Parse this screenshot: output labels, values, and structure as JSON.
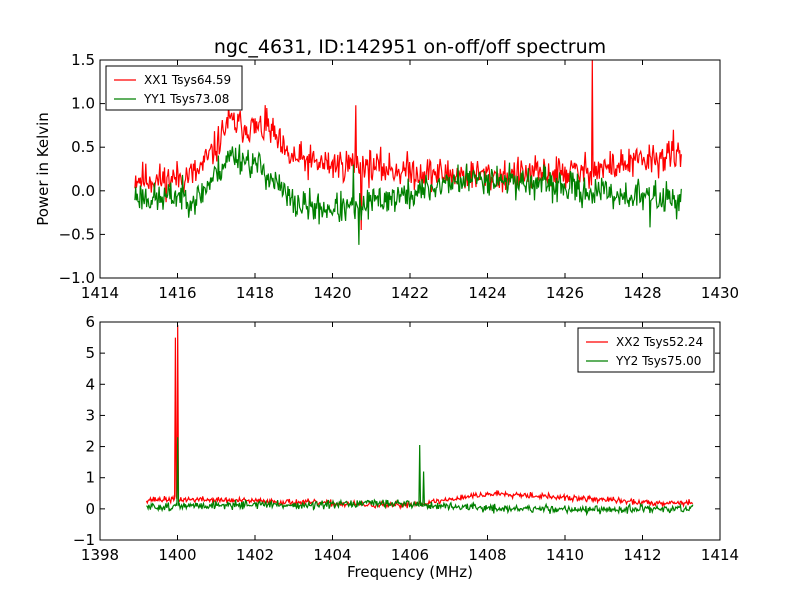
{
  "figure": {
    "title": "ngc_4631, ID:142951 on-off/off spectrum"
  },
  "chart_data": [
    {
      "type": "line",
      "title": "ngc_4631, ID:142951 on-off/off spectrum",
      "xlabel": "",
      "ylabel": "Power in Kelvin",
      "xlim": [
        1414,
        1430
      ],
      "ylim": [
        -1.0,
        1.5
      ],
      "xticks": [
        1414,
        1416,
        1418,
        1420,
        1422,
        1424,
        1426,
        1428,
        1430
      ],
      "xtick_labels": [
        "1414",
        "1416",
        "1418",
        "1420",
        "1422",
        "1424",
        "1426",
        "1428",
        "1430"
      ],
      "yticks": [
        -1.0,
        -0.5,
        0.0,
        0.5,
        1.0,
        1.5
      ],
      "ytick_labels": [
        "−1.0",
        "−0.5",
        "0.0",
        "0.5",
        "1.0",
        "1.5"
      ],
      "legend_position": "top-left",
      "grid": false,
      "series": [
        {
          "name": "XX1 Tsys64.59",
          "color": "#ff0000",
          "x_range": [
            1414.9,
            1429.0
          ],
          "noise": 0.12,
          "seed": 11,
          "profile": [
            [
              1414.9,
              0.15
            ],
            [
              1415.5,
              0.12
            ],
            [
              1416.0,
              0.15
            ],
            [
              1416.5,
              0.2
            ],
            [
              1417.0,
              0.5
            ],
            [
              1417.3,
              0.8
            ],
            [
              1417.6,
              0.75
            ],
            [
              1418.0,
              0.72
            ],
            [
              1418.4,
              0.7
            ],
            [
              1418.8,
              0.4
            ],
            [
              1419.5,
              0.32
            ],
            [
              1420.0,
              0.3
            ],
            [
              1420.5,
              0.3
            ],
            [
              1421.5,
              0.25
            ],
            [
              1422.5,
              0.2
            ],
            [
              1423.5,
              0.18
            ],
            [
              1424.5,
              0.17
            ],
            [
              1425.5,
              0.2
            ],
            [
              1426.5,
              0.22
            ],
            [
              1427.5,
              0.3
            ],
            [
              1428.5,
              0.38
            ],
            [
              1429.0,
              0.4
            ]
          ],
          "spikes": [
            {
              "x": 1420.6,
              "y": 0.98
            },
            {
              "x": 1420.75,
              "y": -0.45
            },
            {
              "x": 1426.7,
              "y": 1.5
            },
            {
              "x": 1418.3,
              "y": 0.95
            },
            {
              "x": 1428.8,
              "y": 0.7
            }
          ]
        },
        {
          "name": "YY1 Tsys73.08",
          "color": "#008000",
          "x_range": [
            1414.9,
            1429.0
          ],
          "noise": 0.11,
          "seed": 23,
          "profile": [
            [
              1414.9,
              -0.05
            ],
            [
              1415.5,
              -0.1
            ],
            [
              1416.0,
              -0.05
            ],
            [
              1416.5,
              -0.1
            ],
            [
              1417.0,
              0.2
            ],
            [
              1417.4,
              0.42
            ],
            [
              1417.8,
              0.35
            ],
            [
              1418.2,
              0.25
            ],
            [
              1418.6,
              0.05
            ],
            [
              1419.0,
              -0.15
            ],
            [
              1419.6,
              -0.2
            ],
            [
              1420.2,
              -0.2
            ],
            [
              1420.6,
              -0.22
            ],
            [
              1421.2,
              -0.1
            ],
            [
              1422.0,
              -0.05
            ],
            [
              1423.0,
              0.1
            ],
            [
              1424.0,
              0.15
            ],
            [
              1425.0,
              0.1
            ],
            [
              1425.8,
              0.05
            ],
            [
              1426.5,
              0.0
            ],
            [
              1427.5,
              -0.05
            ],
            [
              1428.5,
              -0.08
            ],
            [
              1429.0,
              -0.1
            ]
          ],
          "spikes": [
            {
              "x": 1420.68,
              "y": -0.62
            },
            {
              "x": 1420.55,
              "y": 0.3
            },
            {
              "x": 1428.2,
              "y": -0.42
            }
          ]
        }
      ]
    },
    {
      "type": "line",
      "title": "",
      "xlabel": "Frequency (MHz)",
      "ylabel": "",
      "xlim": [
        1398,
        1414
      ],
      "ylim": [
        -1,
        6
      ],
      "xticks": [
        1398,
        1400,
        1402,
        1404,
        1406,
        1408,
        1410,
        1412,
        1414
      ],
      "xtick_labels": [
        "1398",
        "1400",
        "1402",
        "1404",
        "1406",
        "1408",
        "1410",
        "1412",
        "1414"
      ],
      "yticks": [
        -1,
        0,
        1,
        2,
        3,
        4,
        5,
        6
      ],
      "ytick_labels": [
        "−1",
        "0",
        "1",
        "2",
        "3",
        "4",
        "5",
        "6"
      ],
      "legend_position": "top-right",
      "grid": false,
      "series": [
        {
          "name": "XX2 Tsys52.24",
          "color": "#ff0000",
          "x_range": [
            1399.2,
            1413.3
          ],
          "noise": 0.06,
          "seed": 37,
          "profile": [
            [
              1399.2,
              0.3
            ],
            [
              1400.5,
              0.3
            ],
            [
              1402.0,
              0.25
            ],
            [
              1403.5,
              0.2
            ],
            [
              1404.5,
              0.15
            ],
            [
              1405.5,
              0.1
            ],
            [
              1406.5,
              0.2
            ],
            [
              1407.5,
              0.4
            ],
            [
              1408.3,
              0.5
            ],
            [
              1409.0,
              0.45
            ],
            [
              1410.0,
              0.35
            ],
            [
              1411.0,
              0.3
            ],
            [
              1412.0,
              0.2
            ],
            [
              1413.3,
              0.2
            ]
          ],
          "spikes": [
            {
              "x": 1400.0,
              "y": 5.9
            },
            {
              "x": 1399.95,
              "y": 5.5
            }
          ]
        },
        {
          "name": "YY2 Tsys75.00",
          "color": "#008000",
          "x_range": [
            1399.2,
            1413.3
          ],
          "noise": 0.08,
          "seed": 51,
          "profile": [
            [
              1399.2,
              0.05
            ],
            [
              1400.5,
              0.1
            ],
            [
              1402.0,
              0.15
            ],
            [
              1403.5,
              0.1
            ],
            [
              1404.5,
              0.15
            ],
            [
              1405.5,
              0.2
            ],
            [
              1406.5,
              0.1
            ],
            [
              1407.5,
              0.05
            ],
            [
              1408.5,
              0.0
            ],
            [
              1410.0,
              0.0
            ],
            [
              1411.0,
              -0.05
            ],
            [
              1412.0,
              0.0
            ],
            [
              1413.3,
              0.0
            ]
          ],
          "spikes": [
            {
              "x": 1400.0,
              "y": 2.3
            },
            {
              "x": 1406.25,
              "y": 2.05
            },
            {
              "x": 1406.35,
              "y": 1.2
            }
          ]
        }
      ]
    }
  ]
}
